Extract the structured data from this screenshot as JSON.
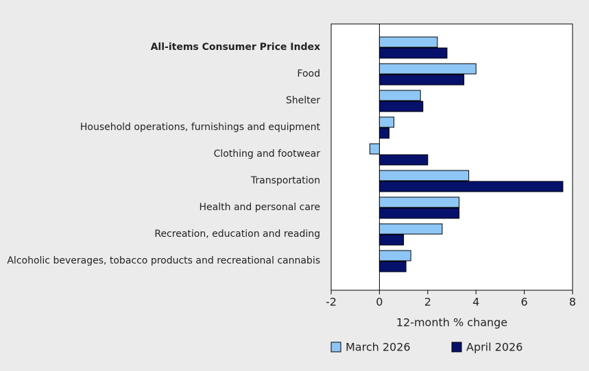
{
  "chart_data": {
    "type": "bar",
    "orientation": "horizontal",
    "categories": [
      "All-items Consumer Price Index",
      "Food",
      "Shelter",
      "Household operations, furnishings and equipment",
      "Clothing and footwear",
      "Transportation",
      "Health and personal care",
      "Recreation, education and reading",
      "Alcoholic beverages, tobacco products and recreational cannabis"
    ],
    "series": [
      {
        "name": "March 2026",
        "color": "#8ec6f5",
        "values": [
          2.4,
          4.0,
          1.7,
          0.6,
          -0.4,
          3.7,
          3.3,
          2.6,
          1.3
        ]
      },
      {
        "name": "April 2026",
        "color": "#06116b",
        "values": [
          2.8,
          3.5,
          1.8,
          0.4,
          2.0,
          7.6,
          3.3,
          1.0,
          1.1
        ]
      }
    ],
    "xlabel": "12-month % change",
    "xlim": [
      -2,
      8
    ],
    "xticks": [
      -2,
      0,
      2,
      4,
      6,
      8
    ]
  }
}
